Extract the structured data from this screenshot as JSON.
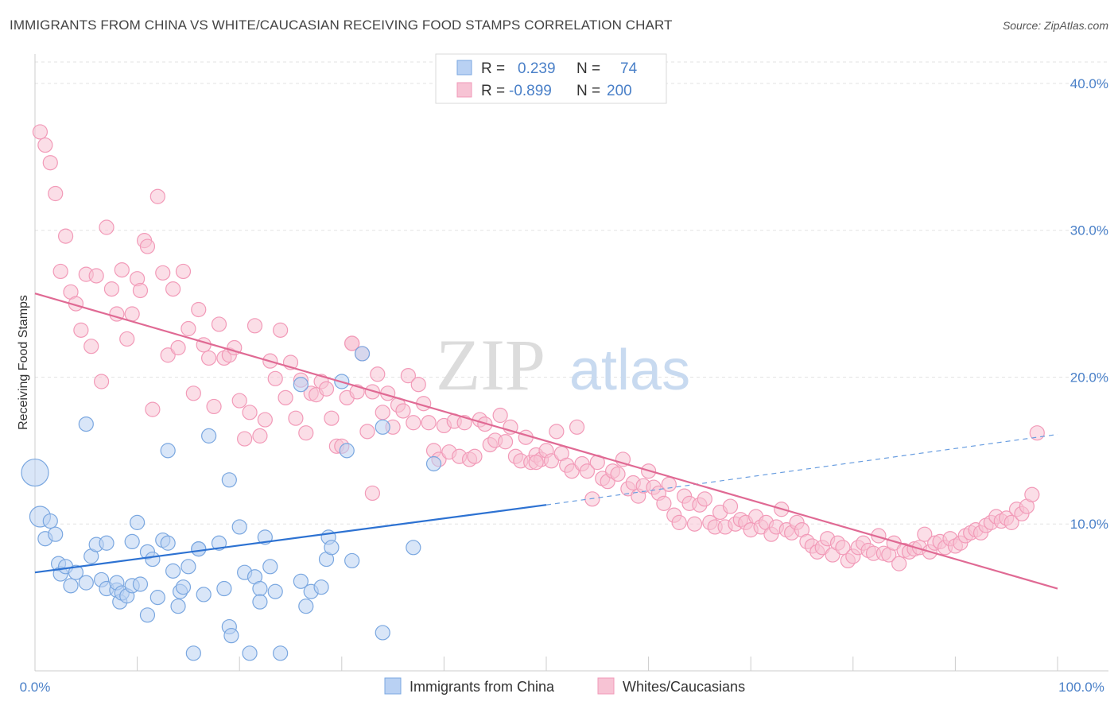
{
  "header": {
    "title": "IMMIGRANTS FROM CHINA VS WHITE/CAUCASIAN RECEIVING FOOD STAMPS CORRELATION CHART",
    "source": "Source: ZipAtlas.com"
  },
  "watermark": {
    "zip": "ZIP",
    "atlas": "atlas"
  },
  "legend_top": {
    "r_label": "R =",
    "n_label": "N =",
    "rows": [
      {
        "r": "0.239",
        "n": "74"
      },
      {
        "r": "-0.899",
        "n": "200"
      }
    ]
  },
  "chart_data": {
    "type": "scatter",
    "title": "IMMIGRANTS FROM CHINA VS WHITE/CAUCASIAN RECEIVING FOOD STAMPS CORRELATION CHART",
    "xlabel": "",
    "ylabel": "Receiving Food Stamps",
    "xlim": [
      0,
      100
    ],
    "ylim": [
      0,
      42
    ],
    "x_tick_labels": [
      "0.0%",
      "100.0%"
    ],
    "y_ticks": [
      10,
      20,
      30,
      40
    ],
    "y_tick_labels": [
      "10.0%",
      "20.0%",
      "30.0%",
      "40.0%"
    ],
    "grid": true,
    "legend_position": "bottom",
    "series": [
      {
        "name": "Immigrants from China",
        "color": "#7aa7e0",
        "fill": "#b9d1f3",
        "r": 0.239,
        "n": 74,
        "trend": {
          "x0": 0,
          "y0": 6.7,
          "x1": 50,
          "y1": 11.3,
          "dash_to_x": 100,
          "dash_to_y": 16.1
        },
        "points": [
          [
            0,
            13.5
          ],
          [
            0.5,
            10.5
          ],
          [
            1,
            9.0
          ],
          [
            1.5,
            10.2
          ],
          [
            2,
            9.3
          ],
          [
            2.3,
            7.3
          ],
          [
            2.5,
            6.6
          ],
          [
            3,
            7.1
          ],
          [
            3.5,
            5.8
          ],
          [
            4,
            6.7
          ],
          [
            5,
            16.8
          ],
          [
            5,
            6.0
          ],
          [
            5.5,
            7.8
          ],
          [
            6,
            8.6
          ],
          [
            6.5,
            6.2
          ],
          [
            7,
            5.6
          ],
          [
            7,
            8.7
          ],
          [
            8,
            5.5
          ],
          [
            8,
            6.0
          ],
          [
            8.3,
            4.7
          ],
          [
            8.5,
            5.3
          ],
          [
            9,
            5.1
          ],
          [
            9.5,
            5.8
          ],
          [
            9.5,
            8.8
          ],
          [
            10,
            10.1
          ],
          [
            10.3,
            5.9
          ],
          [
            11,
            8.1
          ],
          [
            11,
            3.8
          ],
          [
            11.5,
            7.6
          ],
          [
            12,
            5.0
          ],
          [
            12.5,
            8.9
          ],
          [
            13,
            8.7
          ],
          [
            13.5,
            6.8
          ],
          [
            14,
            4.4
          ],
          [
            14.2,
            5.4
          ],
          [
            14.5,
            5.7
          ],
          [
            15,
            7.1
          ],
          [
            15.5,
            1.2
          ],
          [
            16,
            8.3
          ],
          [
            16.5,
            5.2
          ],
          [
            17,
            16.0
          ],
          [
            18,
            8.7
          ],
          [
            18.5,
            5.6
          ],
          [
            19,
            3.0
          ],
          [
            19,
            13.0
          ],
          [
            19.2,
            2.4
          ],
          [
            20,
            9.8
          ],
          [
            20.5,
            6.7
          ],
          [
            21,
            1.2
          ],
          [
            21.5,
            6.4
          ],
          [
            22,
            5.6
          ],
          [
            22,
            4.7
          ],
          [
            22.5,
            9.1
          ],
          [
            23,
            7.1
          ],
          [
            23.5,
            5.4
          ],
          [
            24,
            1.2
          ],
          [
            26,
            19.5
          ],
          [
            26,
            6.1
          ],
          [
            26.5,
            4.4
          ],
          [
            27,
            5.4
          ],
          [
            28,
            5.7
          ],
          [
            28.5,
            7.6
          ],
          [
            28.7,
            9.1
          ],
          [
            29,
            8.4
          ],
          [
            30,
            19.7
          ],
          [
            30.5,
            15.0
          ],
          [
            31,
            7.5
          ],
          [
            32,
            21.6
          ],
          [
            34,
            16.6
          ],
          [
            34,
            2.6
          ],
          [
            37,
            8.4
          ],
          [
            39,
            14.1
          ],
          [
            13,
            15.0
          ],
          [
            16,
            8.3
          ]
        ]
      },
      {
        "name": "Whites/Caucasians",
        "color": "#f29ab8",
        "fill": "#f7c3d4",
        "r": -0.899,
        "n": 200,
        "trend": {
          "x0": 0,
          "y0": 25.7,
          "x1": 100,
          "y1": 5.6
        },
        "points": [
          [
            0.5,
            36.7
          ],
          [
            1,
            35.8
          ],
          [
            1.5,
            34.6
          ],
          [
            2,
            32.5
          ],
          [
            3,
            29.6
          ],
          [
            2.5,
            27.2
          ],
          [
            3.5,
            25.8
          ],
          [
            4,
            25.0
          ],
          [
            4.5,
            23.2
          ],
          [
            5,
            27.0
          ],
          [
            5.5,
            22.1
          ],
          [
            6,
            26.9
          ],
          [
            6.5,
            19.7
          ],
          [
            7,
            30.2
          ],
          [
            7.5,
            26.0
          ],
          [
            8,
            24.3
          ],
          [
            8.5,
            27.3
          ],
          [
            9,
            22.6
          ],
          [
            9.5,
            24.3
          ],
          [
            10,
            26.7
          ],
          [
            10.3,
            25.9
          ],
          [
            10.7,
            29.3
          ],
          [
            11,
            28.9
          ],
          [
            11.5,
            17.8
          ],
          [
            12,
            32.3
          ],
          [
            12.5,
            27.1
          ],
          [
            13,
            21.5
          ],
          [
            13.5,
            26.0
          ],
          [
            14,
            22.0
          ],
          [
            14.5,
            27.2
          ],
          [
            15,
            23.3
          ],
          [
            15.5,
            18.9
          ],
          [
            16,
            24.6
          ],
          [
            16.5,
            22.2
          ],
          [
            17,
            21.3
          ],
          [
            17.5,
            18.0
          ],
          [
            18,
            23.6
          ],
          [
            18.5,
            21.3
          ],
          [
            19,
            21.5
          ],
          [
            19.5,
            22.0
          ],
          [
            20,
            18.4
          ],
          [
            20.5,
            15.8
          ],
          [
            21,
            17.6
          ],
          [
            21.5,
            23.5
          ],
          [
            22,
            16.0
          ],
          [
            22.5,
            17.1
          ],
          [
            23,
            21.1
          ],
          [
            23.5,
            19.9
          ],
          [
            24,
            23.2
          ],
          [
            24.5,
            18.6
          ],
          [
            25,
            21.0
          ],
          [
            25.5,
            17.2
          ],
          [
            26,
            19.8
          ],
          [
            26.5,
            16.2
          ],
          [
            27,
            18.9
          ],
          [
            27.5,
            18.8
          ],
          [
            28,
            19.7
          ],
          [
            28.5,
            19.2
          ],
          [
            29,
            17.2
          ],
          [
            29.5,
            15.3
          ],
          [
            30,
            15.3
          ],
          [
            30.5,
            18.6
          ],
          [
            31,
            22.3
          ],
          [
            31.5,
            19.0
          ],
          [
            32,
            21.6
          ],
          [
            32.5,
            16.3
          ],
          [
            33,
            19.0
          ],
          [
            33.5,
            20.2
          ],
          [
            34,
            17.6
          ],
          [
            34.5,
            18.9
          ],
          [
            35,
            16.6
          ],
          [
            35.5,
            18.1
          ],
          [
            36,
            17.7
          ],
          [
            36.5,
            20.1
          ],
          [
            37,
            16.9
          ],
          [
            37.5,
            19.5
          ],
          [
            38,
            18.2
          ],
          [
            38.5,
            16.9
          ],
          [
            39,
            15.0
          ],
          [
            39.5,
            14.4
          ],
          [
            40,
            16.7
          ],
          [
            40.5,
            14.9
          ],
          [
            41,
            17.0
          ],
          [
            41.5,
            14.6
          ],
          [
            42,
            16.9
          ],
          [
            42.5,
            14.4
          ],
          [
            43,
            14.6
          ],
          [
            43.5,
            17.1
          ],
          [
            44,
            16.8
          ],
          [
            44.5,
            15.4
          ],
          [
            45,
            15.7
          ],
          [
            45.5,
            17.4
          ],
          [
            46,
            15.6
          ],
          [
            46.5,
            16.6
          ],
          [
            47,
            14.6
          ],
          [
            47.5,
            14.3
          ],
          [
            48,
            15.9
          ],
          [
            48.5,
            14.2
          ],
          [
            49,
            14.7
          ],
          [
            49.5,
            14.4
          ],
          [
            50,
            15.0
          ],
          [
            50.5,
            14.3
          ],
          [
            51,
            16.3
          ],
          [
            51.5,
            14.8
          ],
          [
            52,
            14.0
          ],
          [
            52.5,
            13.6
          ],
          [
            53,
            16.6
          ],
          [
            53.5,
            14.1
          ],
          [
            54,
            13.6
          ],
          [
            54.5,
            11.7
          ],
          [
            55,
            14.2
          ],
          [
            55.5,
            13.1
          ],
          [
            56,
            12.9
          ],
          [
            56.5,
            13.6
          ],
          [
            57,
            13.4
          ],
          [
            57.5,
            14.4
          ],
          [
            58,
            12.4
          ],
          [
            58.5,
            12.8
          ],
          [
            59,
            11.9
          ],
          [
            59.5,
            12.6
          ],
          [
            60,
            13.6
          ],
          [
            60.5,
            12.5
          ],
          [
            61,
            12.1
          ],
          [
            61.5,
            11.4
          ],
          [
            62,
            12.7
          ],
          [
            62.5,
            10.6
          ],
          [
            63,
            10.1
          ],
          [
            63.5,
            11.9
          ],
          [
            64,
            11.4
          ],
          [
            64.5,
            10.0
          ],
          [
            65,
            11.3
          ],
          [
            65.5,
            11.7
          ],
          [
            66,
            10.1
          ],
          [
            66.5,
            9.8
          ],
          [
            67,
            10.8
          ],
          [
            67.5,
            9.8
          ],
          [
            68,
            11.2
          ],
          [
            68.5,
            10.0
          ],
          [
            69,
            10.3
          ],
          [
            69.5,
            10.1
          ],
          [
            70,
            9.6
          ],
          [
            70.5,
            10.5
          ],
          [
            71,
            9.8
          ],
          [
            71.5,
            10.1
          ],
          [
            72,
            9.3
          ],
          [
            72.5,
            9.8
          ],
          [
            73,
            11.0
          ],
          [
            73.5,
            9.6
          ],
          [
            74,
            9.4
          ],
          [
            74.5,
            10.1
          ],
          [
            75,
            9.6
          ],
          [
            75.5,
            8.8
          ],
          [
            76,
            8.5
          ],
          [
            76.5,
            8.1
          ],
          [
            77,
            8.4
          ],
          [
            77.5,
            9.0
          ],
          [
            78,
            7.9
          ],
          [
            78.5,
            8.7
          ],
          [
            79,
            8.4
          ],
          [
            79.5,
            7.5
          ],
          [
            80,
            7.8
          ],
          [
            80.5,
            8.4
          ],
          [
            81,
            8.7
          ],
          [
            81.5,
            8.2
          ],
          [
            82,
            8.0
          ],
          [
            82.5,
            9.2
          ],
          [
            83,
            8.0
          ],
          [
            83.5,
            7.9
          ],
          [
            84,
            8.7
          ],
          [
            84.5,
            7.3
          ],
          [
            85,
            8.2
          ],
          [
            85.5,
            8.1
          ],
          [
            86,
            8.3
          ],
          [
            86.5,
            8.4
          ],
          [
            87,
            9.3
          ],
          [
            87.5,
            8.1
          ],
          [
            88,
            8.7
          ],
          [
            88.5,
            8.8
          ],
          [
            89,
            8.4
          ],
          [
            89.5,
            9.0
          ],
          [
            90,
            8.5
          ],
          [
            90.5,
            8.7
          ],
          [
            91,
            9.2
          ],
          [
            91.5,
            9.4
          ],
          [
            92,
            9.6
          ],
          [
            92.5,
            9.4
          ],
          [
            93,
            9.9
          ],
          [
            93.5,
            10.1
          ],
          [
            94,
            10.5
          ],
          [
            94.5,
            10.2
          ],
          [
            95,
            10.4
          ],
          [
            95.5,
            10.1
          ],
          [
            96,
            11.0
          ],
          [
            96.5,
            10.7
          ],
          [
            97,
            11.2
          ],
          [
            97.5,
            12.0
          ],
          [
            98,
            16.2
          ],
          [
            31,
            22.3
          ],
          [
            33,
            12.1
          ],
          [
            49,
            14.2
          ]
        ]
      }
    ]
  }
}
